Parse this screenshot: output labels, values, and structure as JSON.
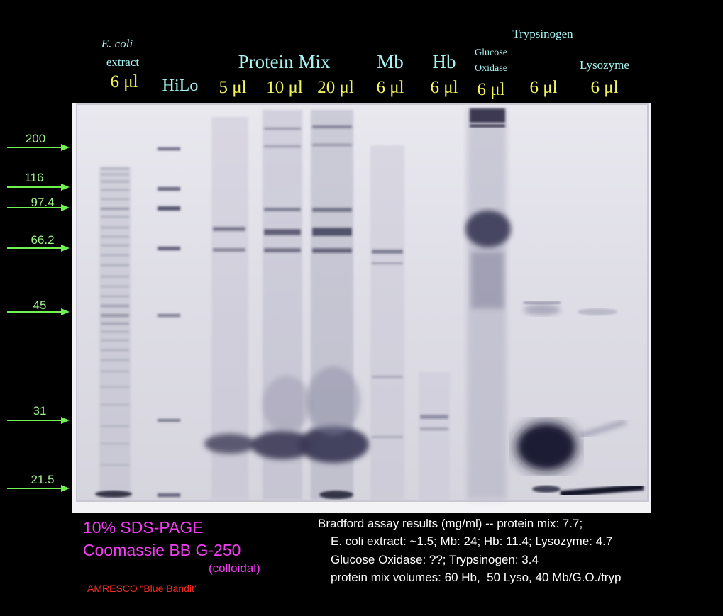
{
  "lanes": {
    "ecoli_name": "E. coli",
    "ecoli_name2": "extract",
    "ecoli_vol": "6 μl",
    "hilo": "HiLo",
    "protein_mix": "Protein Mix",
    "pm_vol1": "5 μl",
    "pm_vol2": "10 μl",
    "pm_vol3": "20 μl",
    "mb": "Mb",
    "mb_vol": "6 μl",
    "hb": "Hb",
    "hb_vol": "6 μl",
    "glucose1": "Glucose",
    "glucose2": "Oxidase",
    "go_vol": "6 μl",
    "trypsinogen": "Trypsinogen",
    "tryp_vol": "6 μl",
    "lysozyme": "Lysozyme",
    "lyso_vol": "6 μl"
  },
  "markers": [
    "200",
    "116",
    "97.4",
    "66.2",
    "45",
    "31",
    "21.5"
  ],
  "captions": {
    "line1": "10% SDS-PAGE",
    "line2": "Coomassie BB G-250",
    "line3": "(colloidal)",
    "line4": "AMRESCO “Blue Bandit”"
  },
  "results": {
    "line1": "Bradford assay results (mg/ml) -- protein mix: 7.7;",
    "line2": "E. coli extract: ~1.5; Mb: 24; Hb: 11.4; Lysozyme: 4.7",
    "line3": "Glucose Oxidase: ??; Trypsinogen: 3.4",
    "line4": "protein mix volumes: 60 Hb,  50 Lyso, 40 Mb/G.O./tryp"
  },
  "colors": {
    "lane_names": "#a6f3f2",
    "volumes": "#f1f45a",
    "markers": "#9ff58a",
    "caption": "#f13ef0",
    "brand": "#f22d25"
  }
}
